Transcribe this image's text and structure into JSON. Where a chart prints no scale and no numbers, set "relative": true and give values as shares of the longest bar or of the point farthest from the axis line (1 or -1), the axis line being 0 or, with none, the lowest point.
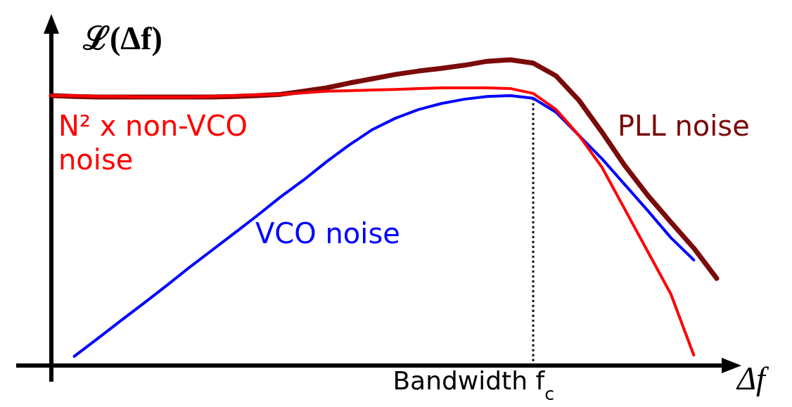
{
  "chart_data": {
    "type": "line",
    "relative": true,
    "ylabel": "ℒ(Δf)",
    "xlabel": "Δf",
    "line_style": "solid",
    "categories": [
      null,
      null,
      null,
      null,
      null,
      null,
      null,
      null,
      null,
      null,
      null,
      null,
      null,
      null,
      null,
      null,
      null,
      null,
      null,
      null,
      null,
      null,
      null,
      null,
      null,
      null,
      null,
      null,
      null,
      null
    ],
    "series": [
      {
        "name": "N² x non-VCO noise",
        "color": "#ff0000",
        "values": [
          0.883,
          0.883,
          0.88,
          0.88,
          0.878,
          0.878,
          0.878,
          0.88,
          0.883,
          0.885,
          0.887,
          0.892,
          0.897,
          0.899,
          0.901,
          0.903,
          0.906,
          0.908,
          0.908,
          0.908,
          0.906,
          0.89,
          0.837,
          0.752,
          0.648,
          0.51,
          0.372,
          0.234,
          0.034,
          null
        ]
      },
      {
        "name": "VCO noise",
        "color": "#0000ff",
        "values": [
          null,
          0.03,
          0.087,
          0.145,
          0.202,
          0.26,
          0.32,
          0.377,
          0.434,
          0.492,
          0.552,
          0.607,
          0.667,
          0.722,
          0.772,
          0.809,
          0.837,
          0.857,
          0.871,
          0.88,
          0.883,
          0.874,
          0.828,
          0.752,
          0.676,
          0.591,
          0.506,
          0.418,
          0.345,
          null
        ]
      },
      {
        "name": "PLL noise",
        "color": "#7b0a0a",
        "values": [
          0.883,
          0.88,
          0.878,
          0.878,
          0.878,
          0.878,
          0.878,
          0.878,
          0.88,
          0.883,
          0.887,
          0.897,
          0.908,
          0.924,
          0.938,
          0.952,
          0.963,
          0.972,
          0.982,
          0.995,
          1,
          0.989,
          0.947,
          0.867,
          0.763,
          0.653,
          0.556,
          0.469,
          0.384,
          0.285
        ]
      }
    ],
    "annotations": [
      "Bandwidth f$_{c}$"
    ]
  }
}
